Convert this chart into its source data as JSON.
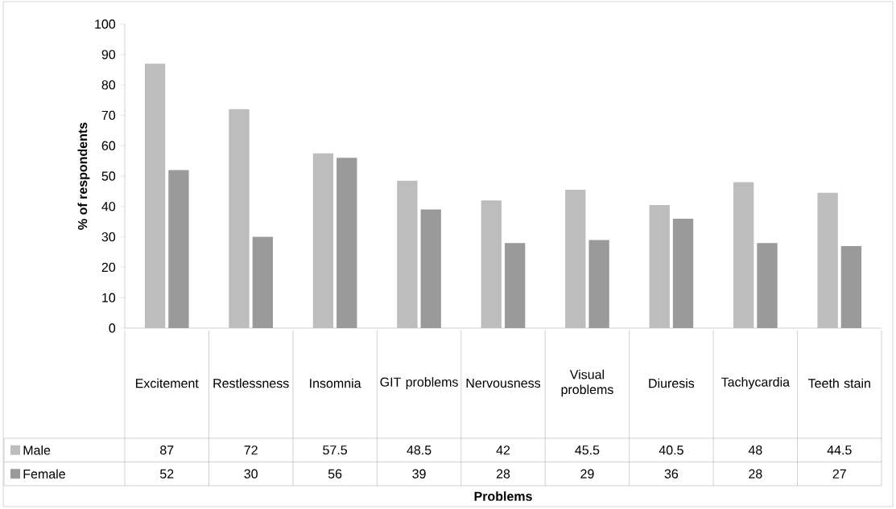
{
  "chart_data": {
    "type": "bar",
    "annotations": [
      "Problems"
    ],
    "ylabel": "% of respondents",
    "categories": [
      "Excitement",
      "Restlessness",
      "Insomnia",
      "GIT problems",
      "Nervousness",
      "Visual problems",
      "Diuresis",
      "Tachycardia",
      "Teeth stain"
    ],
    "series": [
      {
        "name": "Male",
        "color": "#bdbdbd",
        "values": [
          87,
          72,
          57.5,
          48.5,
          42,
          45.5,
          40.5,
          48,
          44.5
        ]
      },
      {
        "name": "Female",
        "color": "#9a9a9a",
        "values": [
          52,
          30,
          56,
          39,
          28,
          29,
          36,
          28,
          27
        ]
      }
    ],
    "ylim": [
      0,
      100
    ],
    "yticks": [
      0,
      10,
      20,
      30,
      40,
      50,
      60,
      70,
      80,
      90,
      100
    ],
    "data_labels": true,
    "legend": "bottom",
    "grid": false
  }
}
